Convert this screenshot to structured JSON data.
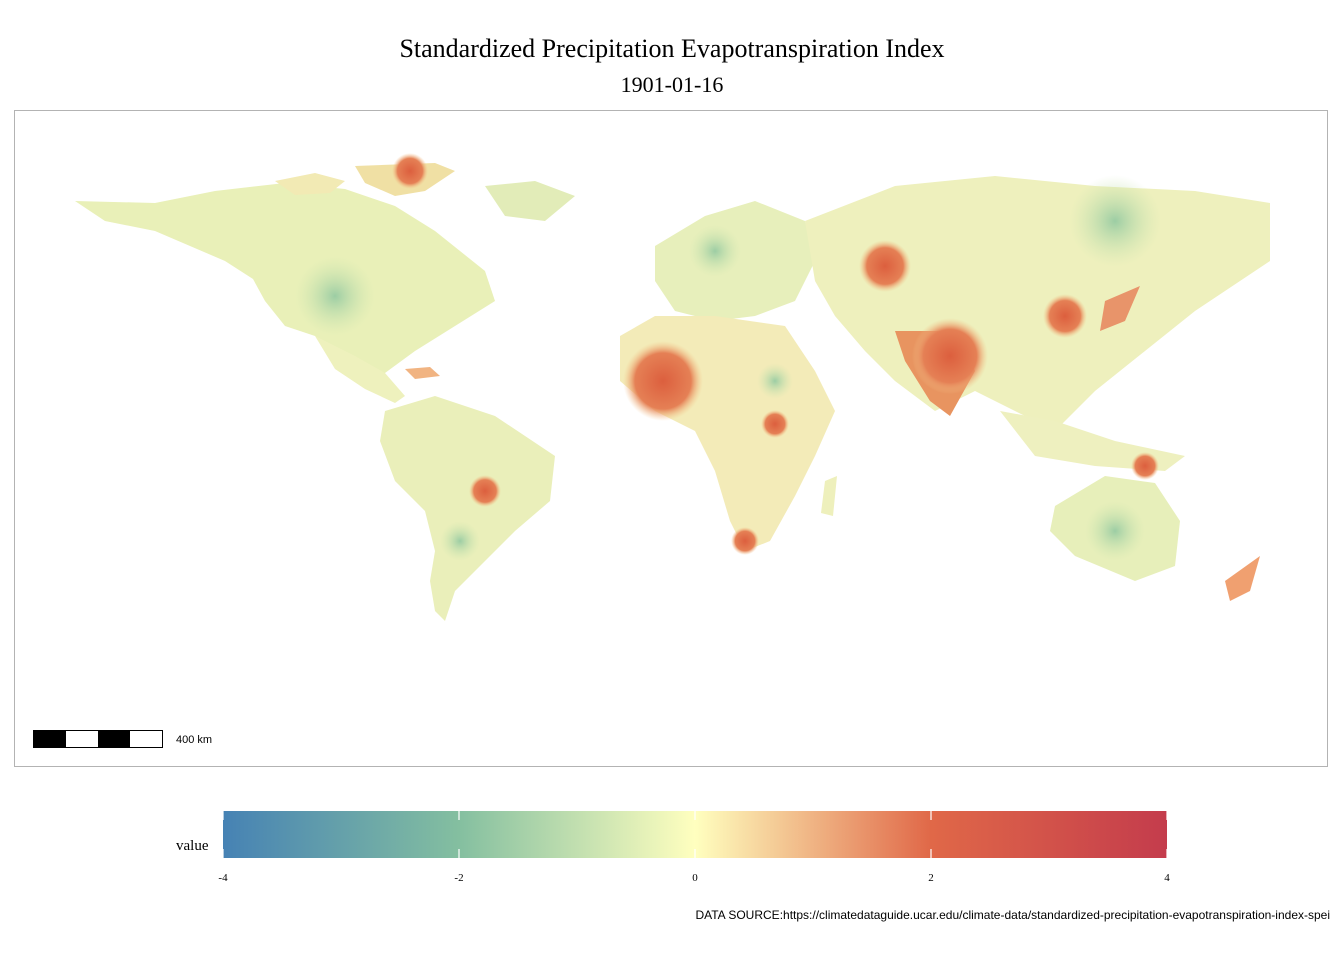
{
  "title": "Standardized Precipitation Evapotranspiration Index",
  "subtitle": "1901-01-16",
  "scalebar": {
    "label": "400 km"
  },
  "legend": {
    "title": "value",
    "ticks": [
      "-4",
      "-2",
      "0",
      "2",
      "4"
    ],
    "range": [
      -4,
      4
    ],
    "colors": {
      "neg4": "#4682b4",
      "neg2": "#84bfa0",
      "zero": "#ffffbf",
      "pos2": "#e06848",
      "pos4": "#c43c4c"
    }
  },
  "source": "DATA SOURCE:https://climatedataguide.ucar.edu/climate-data/standardized-precipitation-evapotranspiration-index-spei"
}
